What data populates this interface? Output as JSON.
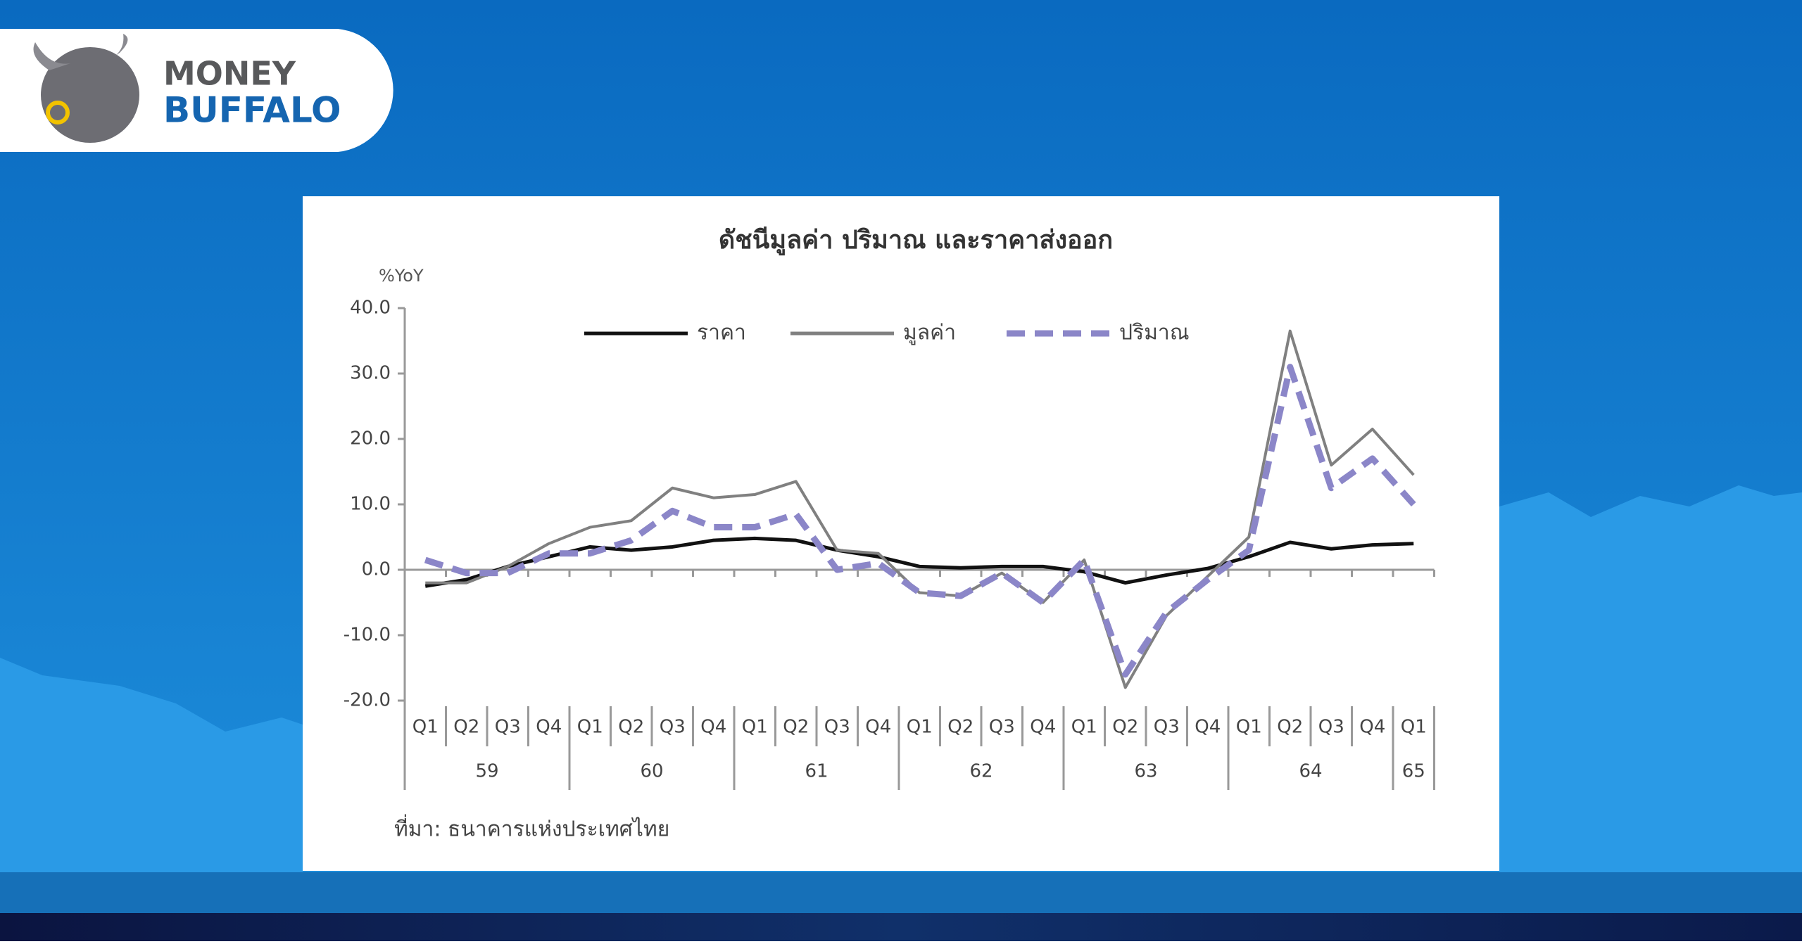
{
  "brand": {
    "line1": "MONEY",
    "line2": "BUFFALO"
  },
  "chart_data": {
    "type": "line",
    "title": "ดัชนีมูลค่า ปริมาณ และราคาส่งออก",
    "y_label": "%YoY",
    "source": "ที่มา: ธนาคารแห่งประเทศไทย",
    "categories": [
      "Q1",
      "Q2",
      "Q3",
      "Q4",
      "Q1",
      "Q2",
      "Q3",
      "Q4",
      "Q1",
      "Q2",
      "Q3",
      "Q4",
      "Q1",
      "Q2",
      "Q3",
      "Q4",
      "Q1",
      "Q2",
      "Q3",
      "Q4",
      "Q1",
      "Q2",
      "Q3",
      "Q4",
      "Q1"
    ],
    "year_labels": [
      "59",
      "60",
      "61",
      "62",
      "63",
      "64",
      "65"
    ],
    "ylim": [
      -20,
      40
    ],
    "yticks": [
      {
        "value": -20,
        "label": "-20.0"
      },
      {
        "value": -10,
        "label": "-10.0"
      },
      {
        "value": 0,
        "label": "0.0"
      },
      {
        "value": 10,
        "label": "10.0"
      },
      {
        "value": 20,
        "label": "20.0"
      },
      {
        "value": 30,
        "label": "30.0"
      },
      {
        "value": 40,
        "label": "40.0"
      }
    ],
    "grid": false,
    "series": [
      {
        "name": "ราคา",
        "color": "#111111",
        "dash": false,
        "values": [
          -2.5,
          -1.5,
          0.5,
          2,
          3.5,
          3,
          3.5,
          4.5,
          4.8,
          4.5,
          3,
          2,
          0.5,
          0.3,
          0.5,
          0.5,
          -0.3,
          -2,
          -0.8,
          0.2,
          2,
          4.2,
          3.2,
          3.8,
          4
        ]
      },
      {
        "name": "มูลค่า",
        "color": "#808080",
        "dash": false,
        "values": [
          -2,
          -2,
          0.5,
          4,
          6.5,
          7.5,
          12.5,
          11,
          11.5,
          13.5,
          3,
          2.5,
          -3.5,
          -4,
          -0.5,
          -5,
          1.5,
          -18,
          -7,
          -1,
          5,
          36.5,
          16,
          21.5,
          14.5
        ]
      },
      {
        "name": "ปริมาณ",
        "color": "#8b86c8",
        "dash": true,
        "values": [
          1.5,
          -0.5,
          -0.5,
          2.5,
          2.5,
          4.5,
          9,
          6.5,
          6.5,
          8.5,
          0,
          1,
          -3.5,
          -4,
          -0.5,
          -5,
          1.5,
          -16,
          -6.5,
          -1.5,
          3,
          31,
          12.5,
          17,
          10
        ]
      }
    ]
  }
}
